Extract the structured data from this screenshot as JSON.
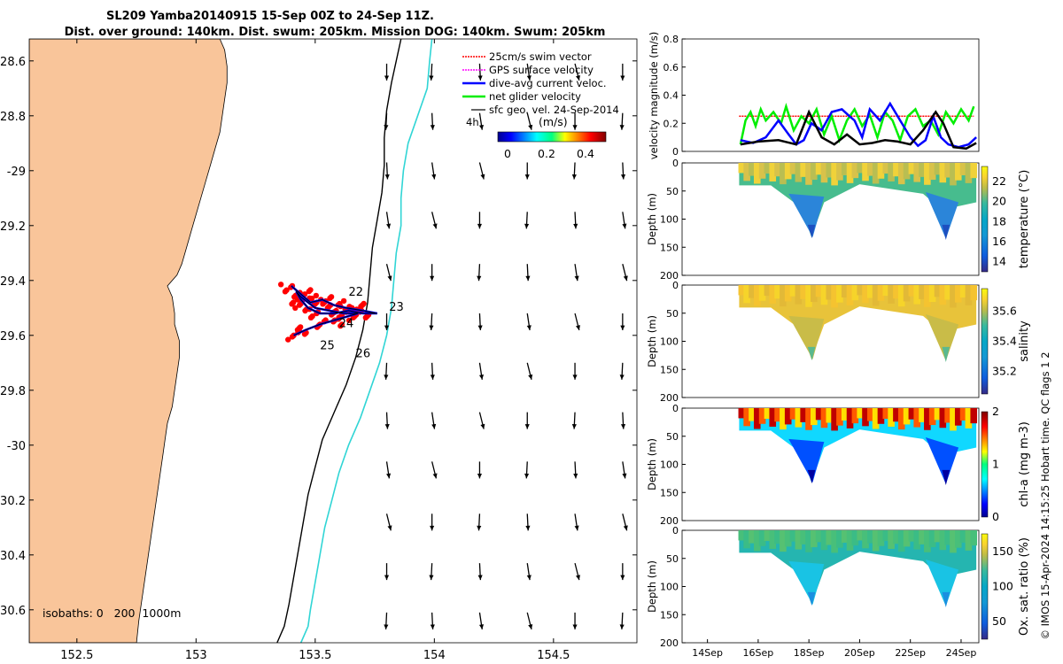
{
  "title": {
    "line1": "SL209 Yamba20140915 15-Sep 00Z to 24-Sep 11Z.",
    "line2": "Dist. over ground: 140km. Dist. swum: 205km. Mission DOG: 140km. Swum: 205km"
  },
  "colors": {
    "land": "#f9c59a",
    "swim": "#ff0000",
    "gps": "#ff00ff",
    "current": "#0000ff",
    "glider": "#00ee00",
    "geo": "#000000",
    "isobath200": "#000000",
    "isobath1000": "#30d5d5"
  },
  "chart_data": [
    {
      "type": "map",
      "id": "track-map",
      "xlim": [
        152.3,
        154.85
      ],
      "ylim": [
        -30.72,
        -28.52
      ],
      "xticks": [
        152.5,
        153,
        153.5,
        154,
        154.5
      ],
      "xtick_labels": [
        "152.5",
        "153",
        "153.5",
        "154",
        "154.5"
      ],
      "yticks": [
        -28.6,
        -28.8,
        -29.0,
        -29.2,
        -29.4,
        -29.6,
        -29.8,
        -30.0,
        -30.2,
        -30.4,
        -30.6
      ],
      "ytick_labels": [
        "28.6",
        "28.8",
        "-29",
        "29.2",
        "29.4",
        "29.6",
        "29.8",
        "-30",
        "30.2",
        "30.4",
        "30.6"
      ],
      "coast": [
        [
          153.1,
          -28.52
        ],
        [
          153.12,
          -28.56
        ],
        [
          153.13,
          -28.62
        ],
        [
          153.13,
          -28.68
        ],
        [
          153.12,
          -28.74
        ],
        [
          153.11,
          -28.8
        ],
        [
          153.1,
          -28.86
        ],
        [
          153.08,
          -28.92
        ],
        [
          153.06,
          -28.98
        ],
        [
          153.04,
          -29.04
        ],
        [
          153.02,
          -29.1
        ],
        [
          153.0,
          -29.16
        ],
        [
          152.98,
          -29.22
        ],
        [
          152.96,
          -29.28
        ],
        [
          152.94,
          -29.34
        ],
        [
          152.92,
          -29.38
        ],
        [
          152.88,
          -29.42
        ],
        [
          152.9,
          -29.46
        ],
        [
          152.91,
          -29.52
        ],
        [
          152.91,
          -29.56
        ],
        [
          152.93,
          -29.62
        ],
        [
          152.93,
          -29.68
        ],
        [
          152.92,
          -29.74
        ],
        [
          152.91,
          -29.8
        ],
        [
          152.9,
          -29.86
        ],
        [
          152.88,
          -29.92
        ],
        [
          152.87,
          -29.98
        ],
        [
          152.86,
          -30.04
        ],
        [
          152.85,
          -30.1
        ],
        [
          152.84,
          -30.16
        ],
        [
          152.83,
          -30.22
        ],
        [
          152.82,
          -30.28
        ],
        [
          152.81,
          -30.34
        ],
        [
          152.8,
          -30.4
        ],
        [
          152.79,
          -30.46
        ],
        [
          152.78,
          -30.52
        ],
        [
          152.77,
          -30.58
        ],
        [
          152.76,
          -30.64
        ],
        [
          152.75,
          -30.72
        ]
      ],
      "isobath_200": [
        [
          153.86,
          -28.52
        ],
        [
          153.84,
          -28.6
        ],
        [
          153.82,
          -28.68
        ],
        [
          153.8,
          -28.78
        ],
        [
          153.79,
          -28.88
        ],
        [
          153.79,
          -28.98
        ],
        [
          153.78,
          -29.08
        ],
        [
          153.76,
          -29.18
        ],
        [
          153.74,
          -29.28
        ],
        [
          153.73,
          -29.38
        ],
        [
          153.72,
          -29.48
        ],
        [
          153.7,
          -29.58
        ],
        [
          153.67,
          -29.68
        ],
        [
          153.63,
          -29.78
        ],
        [
          153.58,
          -29.88
        ],
        [
          153.53,
          -29.98
        ],
        [
          153.5,
          -30.08
        ],
        [
          153.47,
          -30.18
        ],
        [
          153.45,
          -30.28
        ],
        [
          153.43,
          -30.38
        ],
        [
          153.41,
          -30.48
        ],
        [
          153.39,
          -30.58
        ],
        [
          153.37,
          -30.66
        ],
        [
          153.34,
          -30.72
        ]
      ],
      "isobath_1000": [
        [
          153.99,
          -28.52
        ],
        [
          153.98,
          -28.6
        ],
        [
          153.97,
          -28.7
        ],
        [
          153.93,
          -28.8
        ],
        [
          153.89,
          -28.9
        ],
        [
          153.87,
          -29.0
        ],
        [
          153.86,
          -29.1
        ],
        [
          153.86,
          -29.2
        ],
        [
          153.84,
          -29.3
        ],
        [
          153.83,
          -29.4
        ],
        [
          153.82,
          -29.5
        ],
        [
          153.8,
          -29.6
        ],
        [
          153.77,
          -29.7
        ],
        [
          153.73,
          -29.8
        ],
        [
          153.69,
          -29.9
        ],
        [
          153.64,
          -30.0
        ],
        [
          153.6,
          -30.1
        ],
        [
          153.57,
          -30.2
        ],
        [
          153.54,
          -30.3
        ],
        [
          153.52,
          -30.4
        ],
        [
          153.5,
          -30.5
        ],
        [
          153.48,
          -30.6
        ],
        [
          153.47,
          -30.66
        ],
        [
          153.44,
          -30.72
        ]
      ],
      "glider_track": [
        [
          153.4,
          -29.42
        ],
        [
          153.44,
          -29.45
        ],
        [
          153.48,
          -29.48
        ],
        [
          153.53,
          -29.47
        ],
        [
          153.58,
          -29.49
        ],
        [
          153.63,
          -29.5
        ],
        [
          153.7,
          -29.51
        ],
        [
          153.76,
          -29.52
        ],
        [
          153.7,
          -29.52
        ],
        [
          153.64,
          -29.51
        ],
        [
          153.58,
          -29.52
        ],
        [
          153.52,
          -29.52
        ],
        [
          153.47,
          -29.5
        ],
        [
          153.44,
          -29.47
        ],
        [
          153.42,
          -29.44
        ],
        [
          153.44,
          -29.46
        ],
        [
          153.5,
          -29.5
        ],
        [
          153.56,
          -29.51
        ],
        [
          153.62,
          -29.52
        ],
        [
          153.68,
          -29.52
        ],
        [
          153.6,
          -29.54
        ],
        [
          153.52,
          -29.56
        ],
        [
          153.46,
          -29.58
        ],
        [
          153.41,
          -29.6
        ]
      ],
      "swim_cloud": [
        [
          153.38,
          -29.43
        ],
        [
          153.43,
          -29.46
        ],
        [
          153.5,
          -29.48
        ],
        [
          153.57,
          -29.5
        ],
        [
          153.63,
          -29.51
        ],
        [
          153.7,
          -29.52
        ],
        [
          153.66,
          -29.53
        ],
        [
          153.58,
          -29.53
        ],
        [
          153.5,
          -29.52
        ],
        [
          153.44,
          -29.5
        ],
        [
          153.42,
          -29.47
        ],
        [
          153.48,
          -29.45
        ],
        [
          153.55,
          -29.47
        ],
        [
          153.62,
          -29.49
        ],
        [
          153.68,
          -29.5
        ],
        [
          153.6,
          -29.55
        ],
        [
          153.52,
          -29.56
        ],
        [
          153.45,
          -29.58
        ],
        [
          153.41,
          -29.6
        ]
      ],
      "day_labels": [
        {
          "text": "22",
          "lon": 153.64,
          "lat": -29.455
        },
        {
          "text": "23",
          "lon": 153.81,
          "lat": -29.51
        },
        {
          "text": "24",
          "lon": 153.6,
          "lat": -29.57
        },
        {
          "text": "25",
          "lon": 153.52,
          "lat": -29.65
        },
        {
          "text": "26",
          "lon": 153.67,
          "lat": -29.68
        }
      ],
      "geo_vectors": {
        "lons": [
          153.8,
          153.99,
          154.19,
          154.39,
          154.59,
          154.79
        ],
        "lats": [
          -28.61,
          -28.79,
          -28.97,
          -29.15,
          -29.34,
          -29.52,
          -29.7,
          -29.88,
          -30.06,
          -30.25,
          -30.43,
          -30.61
        ],
        "u_ms": [
          0.0,
          -0.01,
          0.01,
          0.03,
          0.05
        ],
        "v_ms": -0.4
      },
      "legend": [
        "25cm/s swim vector",
        "GPS surface velocity",
        "dive-avg current veloc.",
        "net glider velocity",
        "sfc geo. vel. 24-Sep-2014"
      ],
      "legend_extra": "4h",
      "colorbar": {
        "label": "(m/s)",
        "ticks": [
          "0",
          "0.2",
          "0.4"
        ],
        "range": [
          0,
          0.5
        ]
      },
      "isobaths_label": "isobaths: 0   200  1000m"
    },
    {
      "type": "line",
      "id": "velocity",
      "ylabel": "velocity magnitude (m/s)",
      "ylim": [
        0,
        0.8
      ],
      "yticks": [
        "0",
        "0.2",
        "0.4",
        "0.6",
        "0.8"
      ],
      "xlim_days": [
        13,
        24.7
      ],
      "series": [
        {
          "name": "swim vector",
          "x": [
            15.25,
            24.5
          ],
          "values": [
            0.25,
            0.25
          ]
        },
        {
          "name": "net glider velocity",
          "x": [
            15.3,
            15.5,
            15.7,
            15.9,
            16.1,
            16.3,
            16.6,
            16.9,
            17.1,
            17.4,
            17.7,
            18.0,
            18.3,
            18.6,
            18.9,
            19.2,
            19.5,
            19.8,
            20.1,
            20.4,
            20.7,
            21.0,
            21.3,
            21.6,
            21.9,
            22.2,
            22.5,
            22.8,
            23.1,
            23.4,
            23.7,
            24.0,
            24.3,
            24.5
          ],
          "values": [
            0.05,
            0.22,
            0.28,
            0.18,
            0.3,
            0.22,
            0.28,
            0.2,
            0.32,
            0.15,
            0.25,
            0.2,
            0.3,
            0.12,
            0.25,
            0.08,
            0.22,
            0.3,
            0.18,
            0.26,
            0.1,
            0.28,
            0.22,
            0.08,
            0.25,
            0.3,
            0.18,
            0.22,
            0.12,
            0.28,
            0.2,
            0.3,
            0.22,
            0.32
          ]
        },
        {
          "name": "dive-avg current",
          "x": [
            15.3,
            15.8,
            16.3,
            16.8,
            17.2,
            17.5,
            17.8,
            18.1,
            18.5,
            18.9,
            19.3,
            19.6,
            19.8,
            20.1,
            20.4,
            20.8,
            21.2,
            21.6,
            22.0,
            22.3,
            22.6,
            22.9,
            23.2,
            23.5,
            23.9,
            24.3,
            24.6
          ],
          "values": [
            0.08,
            0.06,
            0.1,
            0.22,
            0.12,
            0.05,
            0.08,
            0.2,
            0.15,
            0.28,
            0.3,
            0.25,
            0.22,
            0.1,
            0.3,
            0.22,
            0.34,
            0.22,
            0.1,
            0.04,
            0.08,
            0.25,
            0.1,
            0.05,
            0.03,
            0.05,
            0.1
          ]
        },
        {
          "name": "net glider velocity (smooth)",
          "x": [
            15.3,
            16.0,
            16.8,
            17.5,
            18.0,
            18.5,
            19.0,
            19.5,
            20.0,
            20.5,
            21.0,
            21.5,
            22.0,
            22.5,
            23.0,
            23.3,
            23.7,
            24.2,
            24.6
          ],
          "values": [
            0.05,
            0.07,
            0.08,
            0.05,
            0.28,
            0.1,
            0.05,
            0.12,
            0.05,
            0.06,
            0.08,
            0.07,
            0.05,
            0.15,
            0.28,
            0.2,
            0.03,
            0.02,
            0.06
          ]
        }
      ]
    },
    {
      "type": "heatmap",
      "id": "temperature",
      "ylabel": "Depth (m)",
      "yticks": [
        "0",
        "50",
        "100",
        "150",
        "200"
      ],
      "cbar_label": "temperature (°C)",
      "cbar_ticks": [
        "14",
        "16",
        "18",
        "20",
        "22"
      ]
    },
    {
      "type": "heatmap",
      "id": "salinity",
      "ylabel": "Depth (m)",
      "yticks": [
        "0",
        "50",
        "100",
        "150",
        "200"
      ],
      "cbar_label": "salinity",
      "cbar_ticks": [
        "35.2",
        "35.4",
        "35.6"
      ]
    },
    {
      "type": "heatmap",
      "id": "chla",
      "ylabel": "Depth (m)",
      "yticks": [
        "0",
        "50",
        "100",
        "150",
        "200"
      ],
      "cbar_label": "chl-a (mg m-3)",
      "cbar_ticks": [
        "0",
        "1",
        "2"
      ]
    },
    {
      "type": "heatmap",
      "id": "oxygen",
      "ylabel": "Depth (m)",
      "yticks": [
        "0",
        "50",
        "100",
        "150",
        "200"
      ],
      "cbar_label": "Ox. sat. ratio (%)",
      "cbar_ticks": [
        "50",
        "100",
        "150"
      ],
      "xticks": [
        "14Sep",
        "16Sep",
        "18Sep",
        "20Sep",
        "22Sep",
        "24Sep"
      ]
    }
  ],
  "credit": "© IMOS 15-Apr-2024 14:15:25 Hobart time. QC flags 1  2"
}
